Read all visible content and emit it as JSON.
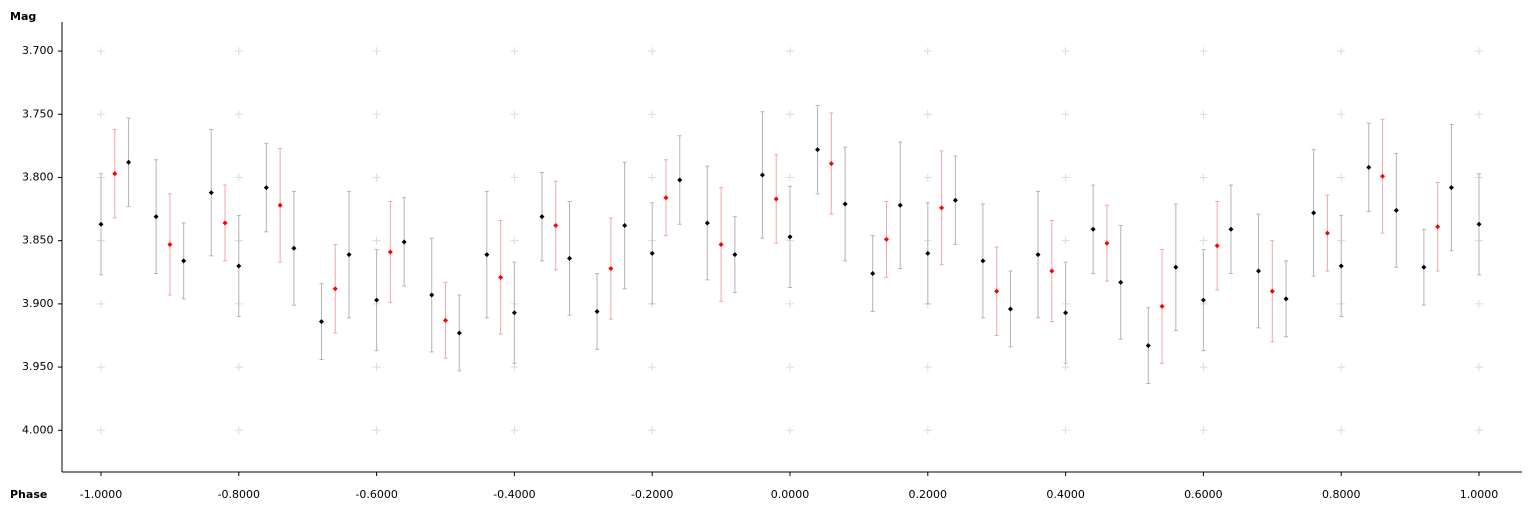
{
  "chart_data": {
    "type": "scatter",
    "y_label": "Mag",
    "x_label": "Phase",
    "xlim": [
      -1.0566,
      1.0624
    ],
    "ylim": [
      3.677,
      4.033
    ],
    "invert_y": true,
    "grid": true,
    "xticks": [
      {
        "value": -1.0,
        "label": "-1.0000"
      },
      {
        "value": -0.8,
        "label": "-0.8000"
      },
      {
        "value": -0.6,
        "label": "-0.6000"
      },
      {
        "value": -0.4,
        "label": "-0.4000"
      },
      {
        "value": -0.2,
        "label": "-0.2000"
      },
      {
        "value": 0,
        "label": "0.0000"
      },
      {
        "value": 0.2,
        "label": "0.2000"
      },
      {
        "value": 0.4,
        "label": "0.4000"
      },
      {
        "value": 0.6,
        "label": "0.6000"
      },
      {
        "value": 0.8,
        "label": "0.8000"
      },
      {
        "value": 1.0,
        "label": "1.0000"
      }
    ],
    "yticks": [
      {
        "value": 3.7,
        "label": "3.700"
      },
      {
        "value": 3.75,
        "label": "3.750"
      },
      {
        "value": 3.8,
        "label": "3.800"
      },
      {
        "value": 3.85,
        "label": "3.850"
      },
      {
        "value": 3.9,
        "label": "3.900"
      },
      {
        "value": 3.95,
        "label": "3.950"
      },
      {
        "value": 4.0,
        "label": "4.000"
      }
    ],
    "series": [
      {
        "color": "#000000",
        "error_color": "#b4b4b4",
        "x": [
          -1,
          -0.96,
          -0.92,
          -0.88,
          -0.84,
          -0.8,
          -0.76,
          -0.72,
          -0.68,
          -0.64,
          -0.6,
          -0.56,
          -0.52,
          -0.48,
          -0.44,
          -0.4,
          -0.36,
          -0.32,
          -0.28,
          -0.24,
          -0.2,
          -0.16,
          -0.12,
          -0.08,
          -0.04,
          0,
          0.04,
          0.08,
          0.12,
          0.16,
          0.2,
          0.24,
          0.28,
          0.32,
          0.36,
          0.4,
          0.44,
          0.48,
          0.52,
          0.56,
          0.6,
          0.64,
          0.68,
          0.72,
          0.76,
          0.8,
          0.84,
          0.88,
          0.92,
          0.96,
          1
        ],
        "values": [
          3.837,
          3.788,
          3.831,
          3.866,
          3.812,
          3.87,
          3.808,
          3.856,
          3.914,
          3.861,
          3.897,
          3.851,
          3.893,
          3.923,
          3.861,
          3.907,
          3.831,
          3.864,
          3.906,
          3.838,
          3.86,
          3.802,
          3.836,
          3.861,
          3.798,
          3.847,
          3.778,
          3.821,
          3.876,
          3.822,
          3.86,
          3.818,
          3.866,
          3.904,
          3.861,
          3.907,
          3.841,
          3.883,
          3.933,
          3.871,
          3.897,
          3.841,
          3.874,
          3.896,
          3.828,
          3.87,
          3.792,
          3.826,
          3.871,
          3.808,
          3.837
        ],
        "errors": [
          0.04,
          0.035,
          0.045,
          0.03,
          0.05,
          0.04,
          0.035,
          0.045,
          0.03,
          0.05,
          0.04,
          0.035,
          0.045,
          0.03,
          0.05,
          0.04,
          0.035,
          0.045,
          0.03,
          0.05,
          0.04,
          0.035,
          0.045,
          0.03,
          0.05,
          0.04,
          0.035,
          0.045,
          0.03,
          0.05,
          0.04,
          0.035,
          0.045,
          0.03,
          0.05,
          0.04,
          0.035,
          0.045,
          0.03,
          0.05,
          0.04,
          0.035,
          0.045,
          0.03,
          0.05,
          0.04,
          0.035,
          0.045,
          0.03,
          0.05,
          0.04
        ]
      },
      {
        "color": "#ff0000",
        "error_color": "#f2a8a8",
        "x": [
          -0.98,
          -0.9,
          -0.82,
          -0.74,
          -0.66,
          -0.58,
          -0.5,
          -0.42,
          -0.34,
          -0.26,
          -0.18,
          -0.1,
          -0.02,
          0.06,
          0.14,
          0.22,
          0.3,
          0.38,
          0.46,
          0.54,
          0.62,
          0.7,
          0.78,
          0.86,
          0.94
        ],
        "values": [
          3.797,
          3.853,
          3.836,
          3.822,
          3.888,
          3.859,
          3.913,
          3.879,
          3.838,
          3.872,
          3.816,
          3.853,
          3.817,
          3.789,
          3.849,
          3.824,
          3.89,
          3.874,
          3.852,
          3.902,
          3.854,
          3.89,
          3.844,
          3.799,
          3.839
        ],
        "errors": [
          0.035,
          0.04,
          0.03,
          0.045,
          0.035,
          0.04,
          0.03,
          0.045,
          0.035,
          0.04,
          0.03,
          0.045,
          0.035,
          0.04,
          0.03,
          0.045,
          0.035,
          0.04,
          0.03,
          0.045,
          0.035,
          0.04,
          0.03,
          0.045,
          0.035
        ]
      }
    ]
  }
}
